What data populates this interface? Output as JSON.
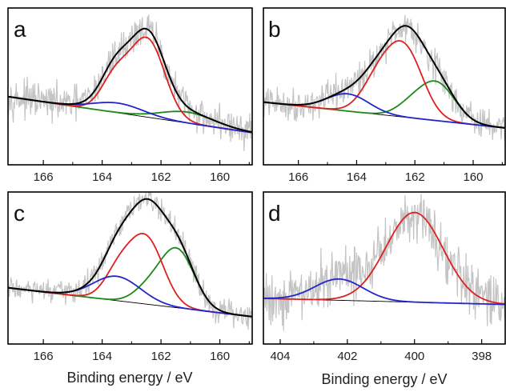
{
  "figure": {
    "xlabel": "Binding energy / eV"
  },
  "colors": {
    "raw": "#c4c4c4",
    "envelope": "#000000",
    "background": "#000000",
    "red": "#dd2020",
    "green": "#1a8a1a",
    "blue": "#2424cc"
  },
  "chart_data": [
    {
      "type": "line",
      "panel": "a",
      "xlim": [
        167.2,
        158.9
      ],
      "ylim": [
        0,
        1
      ],
      "xticks": [
        166,
        164,
        162,
        160
      ],
      "tick_labels": [
        "166",
        "164",
        "162",
        "160"
      ],
      "baseline": {
        "start": 0.435,
        "end": 0.205
      },
      "components": [
        {
          "color": "red",
          "center": 162.45,
          "height": 0.49,
          "sigma": 0.58
        },
        {
          "color": "red",
          "center": 163.55,
          "height": 0.22,
          "sigma": 0.48
        },
        {
          "color": "blue",
          "center": 163.45,
          "height": 0.062,
          "sigma": 0.85
        },
        {
          "color": "green",
          "center": 161.1,
          "height": 0.07,
          "sigma": 0.9
        }
      ],
      "noise": 0.055
    },
    {
      "type": "line",
      "panel": "b",
      "xlim": [
        167.2,
        158.9
      ],
      "ylim": [
        0,
        1
      ],
      "xticks": [
        166,
        164,
        162,
        160
      ],
      "tick_labels": [
        "166",
        "164",
        "162",
        "160"
      ],
      "baseline": {
        "start": 0.4,
        "end": 0.235
      },
      "components": [
        {
          "color": "red",
          "center": 162.35,
          "height": 0.43,
          "sigma": 0.62
        },
        {
          "color": "red",
          "center": 163.3,
          "height": 0.19,
          "sigma": 0.55
        },
        {
          "color": "green",
          "center": 161.25,
          "height": 0.24,
          "sigma": 0.62
        },
        {
          "color": "green",
          "center": 162.2,
          "height": 0.06,
          "sigma": 0.5
        },
        {
          "color": "blue",
          "center": 164.3,
          "height": 0.11,
          "sigma": 0.72
        }
      ],
      "noise": 0.05
    },
    {
      "type": "line",
      "panel": "c",
      "xlim": [
        167.2,
        158.9
      ],
      "ylim": [
        0,
        1
      ],
      "xticks": [
        166,
        164,
        162,
        160
      ],
      "tick_labels": [
        "166",
        "164",
        "162",
        "160"
      ],
      "baseline": {
        "start": 0.37,
        "end": 0.18
      },
      "components": [
        {
          "color": "red",
          "center": 162.5,
          "height": 0.43,
          "sigma": 0.58
        },
        {
          "color": "red",
          "center": 163.45,
          "height": 0.18,
          "sigma": 0.48
        },
        {
          "color": "green",
          "center": 161.45,
          "height": 0.38,
          "sigma": 0.58
        },
        {
          "color": "green",
          "center": 162.45,
          "height": 0.09,
          "sigma": 0.5
        },
        {
          "color": "blue",
          "center": 163.5,
          "height": 0.16,
          "sigma": 0.8
        }
      ],
      "noise": 0.04
    },
    {
      "type": "line",
      "panel": "d",
      "xlim": [
        404.5,
        397.3
      ],
      "ylim": [
        0,
        1
      ],
      "xticks": [
        404,
        402,
        400,
        398
      ],
      "tick_labels": [
        "404",
        "402",
        "400",
        "398"
      ],
      "baseline": {
        "start": 0.3,
        "end": 0.26
      },
      "components": [
        {
          "color": "red",
          "center": 400.0,
          "height": 0.59,
          "sigma": 0.85
        },
        {
          "color": "blue",
          "center": 402.25,
          "height": 0.14,
          "sigma": 0.72
        }
      ],
      "noise": 0.09
    }
  ]
}
